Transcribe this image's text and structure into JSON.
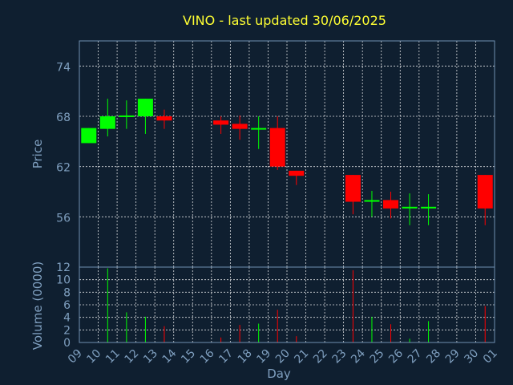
{
  "chart_data": {
    "type": "candlestick",
    "title": "VINO - last updated 30/06/2025",
    "xlabel": "Day",
    "x_ticks": [
      "09",
      "10",
      "11",
      "12",
      "13",
      "14",
      "15",
      "16",
      "17",
      "18",
      "19",
      "20",
      "21",
      "22",
      "23",
      "24",
      "25",
      "26",
      "27",
      "28",
      "29",
      "30",
      "01"
    ],
    "price_panel": {
      "ylabel": "Price",
      "ylim": [
        50,
        77
      ],
      "y_ticks": [
        56,
        62,
        68,
        74
      ],
      "grid": true
    },
    "volume_panel": {
      "ylabel": "Volume (0000)",
      "ylim": [
        0,
        12
      ],
      "y_ticks": [
        0,
        2,
        4,
        6,
        8,
        10,
        12
      ],
      "grid": true
    },
    "up_color": "#00ff00",
    "down_color": "#ff0000",
    "candles": [
      {
        "day": "09",
        "open": 64.8,
        "high": 66.6,
        "low": 64.8,
        "close": 66.6,
        "volume": 0
      },
      {
        "day": "10",
        "open": 66.5,
        "high": 70.1,
        "low": 65.6,
        "close": 68.0,
        "volume": 11.8
      },
      {
        "day": "11",
        "open": 68.0,
        "high": 69.9,
        "low": 66.5,
        "close": 68.1,
        "volume": 4.8
      },
      {
        "day": "12",
        "open": 68.0,
        "high": 70.1,
        "low": 65.9,
        "close": 70.1,
        "volume": 4.1
      },
      {
        "day": "13",
        "open": 68.0,
        "high": 68.8,
        "low": 66.5,
        "close": 67.5,
        "volume": 2.6
      },
      {
        "day": "16",
        "open": 67.5,
        "high": 68.0,
        "low": 65.9,
        "close": 67.0,
        "volume": 0.8
      },
      {
        "day": "17",
        "open": 67.1,
        "high": 68.1,
        "low": 65.2,
        "close": 66.5,
        "volume": 2.8
      },
      {
        "day": "18",
        "open": 66.5,
        "high": 68.0,
        "low": 64.1,
        "close": 66.6,
        "volume": 3.0
      },
      {
        "day": "19",
        "open": 66.6,
        "high": 68.0,
        "low": 61.6,
        "close": 62.0,
        "volume": 5.2
      },
      {
        "day": "20",
        "open": 61.5,
        "high": 61.5,
        "low": 59.8,
        "close": 60.9,
        "volume": 1.0
      },
      {
        "day": "23",
        "open": 61.0,
        "high": 61.0,
        "low": 56.3,
        "close": 57.8,
        "volume": 11.5
      },
      {
        "day": "24",
        "open": 57.8,
        "high": 59.1,
        "low": 56.0,
        "close": 58.0,
        "volume": 4.1
      },
      {
        "day": "25",
        "open": 58.0,
        "high": 59.0,
        "low": 55.8,
        "close": 57.0,
        "volume": 2.9
      },
      {
        "day": "26",
        "open": 57.0,
        "high": 58.8,
        "low": 55.0,
        "close": 57.2,
        "volume": 0.6
      },
      {
        "day": "27",
        "open": 57.0,
        "high": 58.7,
        "low": 55.0,
        "close": 57.2,
        "volume": 3.4
      },
      {
        "day": "30",
        "open": 61.0,
        "high": 61.0,
        "low": 55.0,
        "close": 57.0,
        "volume": 5.8
      }
    ]
  }
}
